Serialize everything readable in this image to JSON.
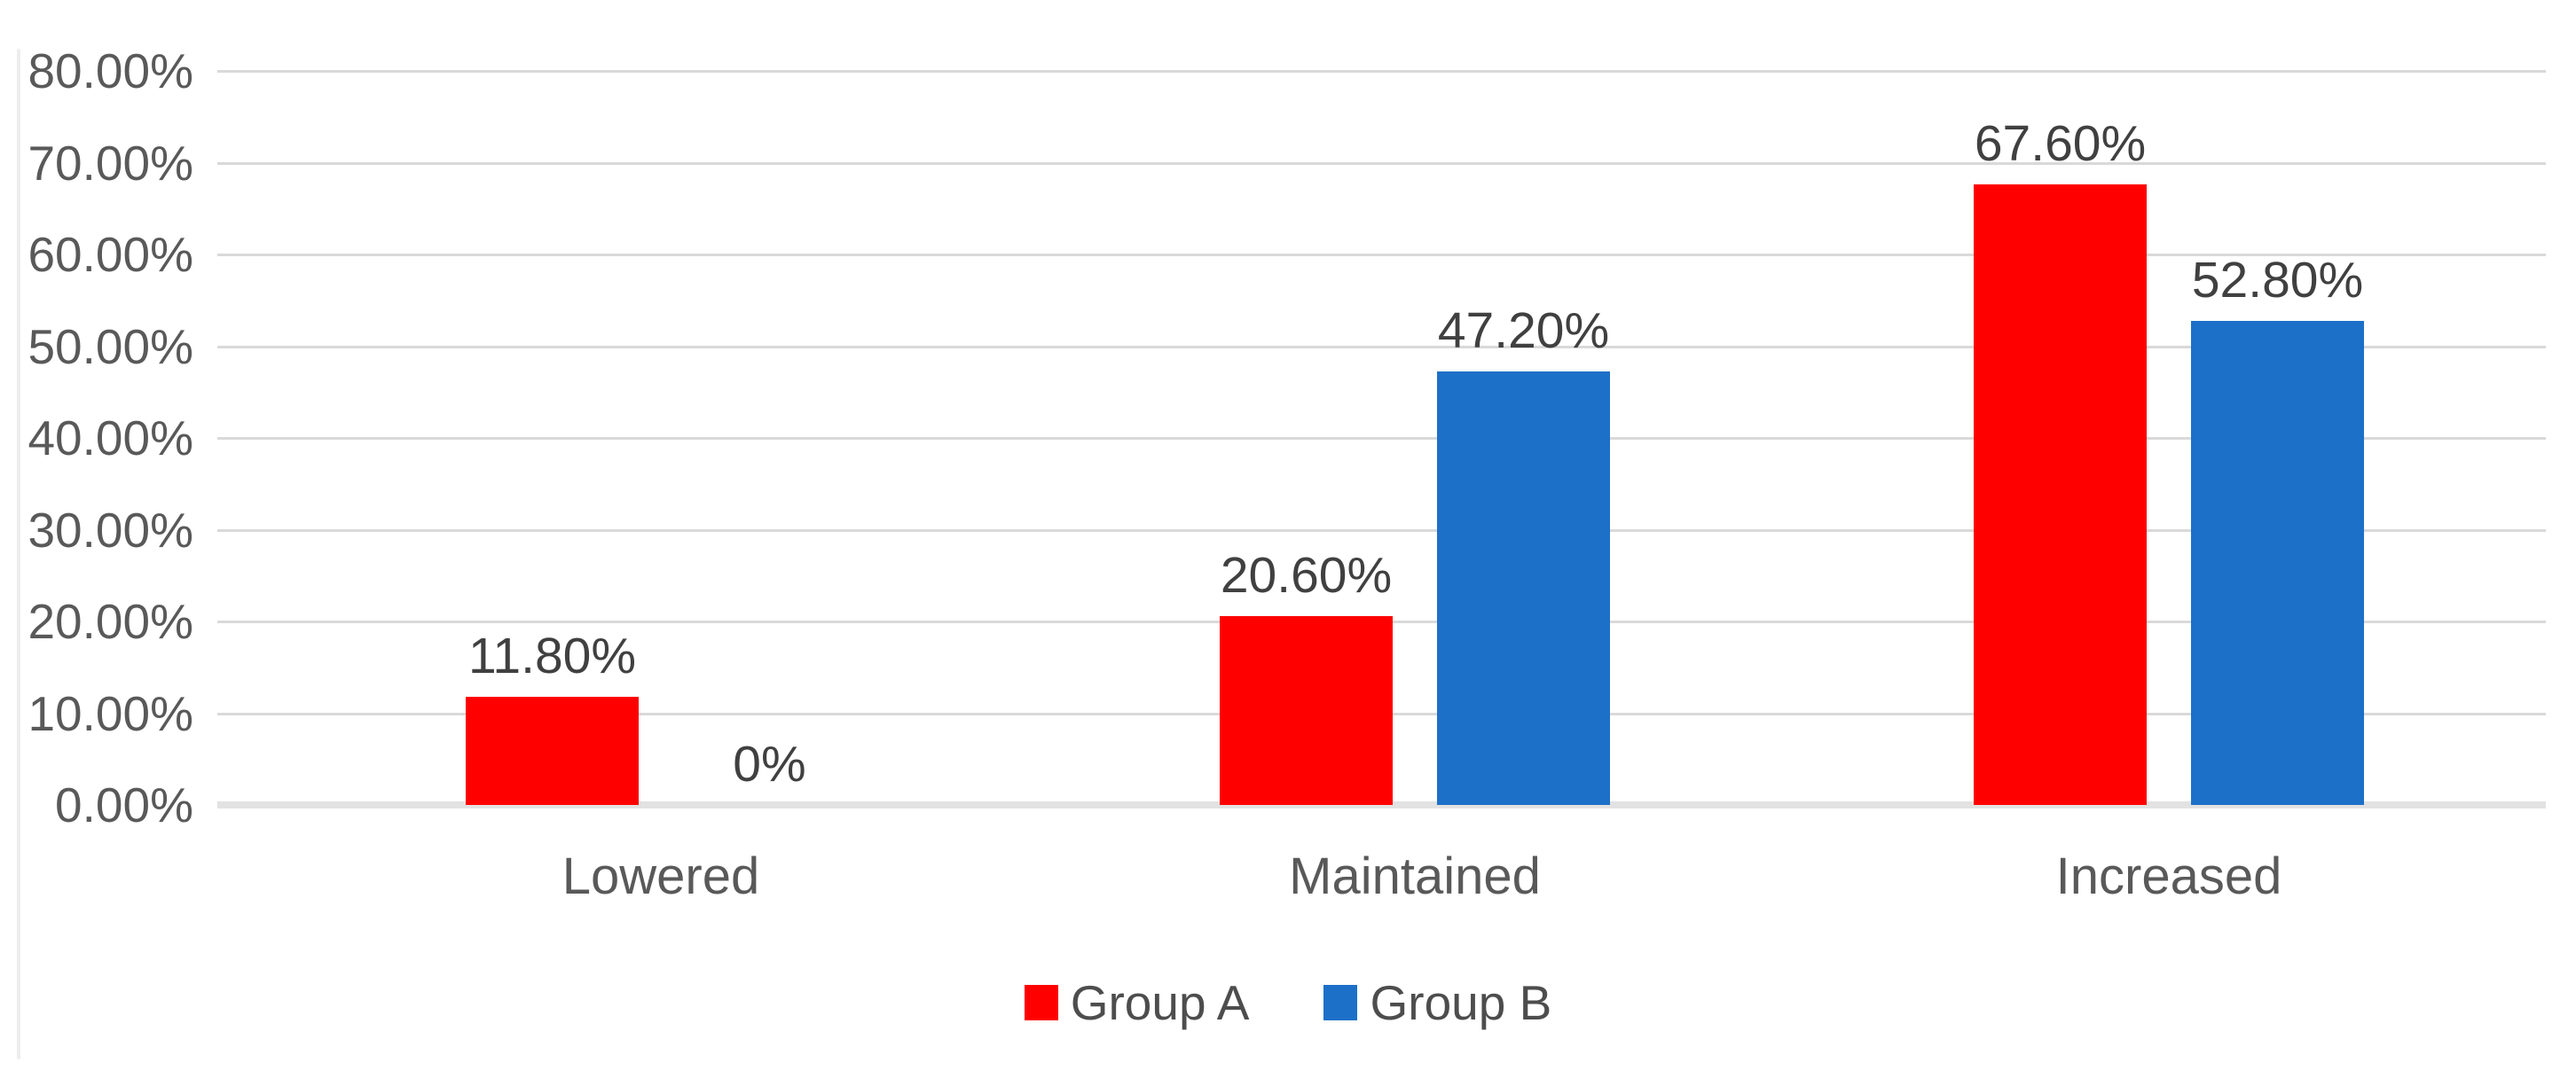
{
  "chart_data": {
    "type": "bar",
    "title": "",
    "categories": [
      "Lowered",
      "Maintained",
      "Increased"
    ],
    "series": [
      {
        "name": "Group A",
        "color": "#ff0000",
        "values": [
          11.8,
          20.6,
          67.6
        ],
        "data_labels": [
          "11.80%",
          "20.60%",
          "67.60%"
        ]
      },
      {
        "name": "Group B",
        "color": "#1d70c8",
        "values": [
          0,
          47.2,
          52.8
        ],
        "data_labels": [
          "0%",
          "47.20%",
          "52.80%"
        ]
      }
    ],
    "y_axis": {
      "min": 0,
      "max": 80,
      "step": 10,
      "tick_labels": [
        "0.00%",
        "10.00%",
        "20.00%",
        "30.00%",
        "40.00%",
        "50.00%",
        "60.00%",
        "70.00%",
        "80.00%"
      ]
    },
    "x_axis": {
      "tick_labels": [
        "Lowered",
        "Maintained",
        "Increased"
      ]
    },
    "grid": true,
    "legend": {
      "position": "bottom-center",
      "items": [
        "Group A",
        "Group B"
      ]
    }
  },
  "colors": {
    "background": "#ffffff",
    "grid_line": "#d9d9d9",
    "baseline": "#e2e2e2",
    "axis_text": "#595959",
    "data_label_text": "#404040",
    "legend_text": "#4d4d4d",
    "series_a": "#ff0000",
    "series_b": "#1d70c8"
  }
}
